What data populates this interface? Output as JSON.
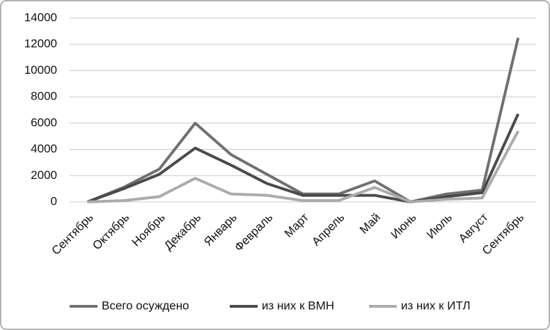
{
  "chart_data": {
    "type": "line",
    "categories": [
      "Сентябрь",
      "Октябрь",
      "Ноябрь",
      "Декабрь",
      "Январь",
      "Февраль",
      "Март",
      "Апрель",
      "Май",
      "Июнь",
      "Июль",
      "Август",
      "Сентябрь"
    ],
    "series": [
      {
        "name": "Всего осуждено",
        "color": "#707070",
        "values": [
          0,
          1100,
          2500,
          6000,
          3600,
          2100,
          600,
          600,
          1600,
          0,
          600,
          900,
          12500
        ]
      },
      {
        "name": "из них к ВМН",
        "color": "#4a4a4a",
        "values": [
          0,
          1000,
          2100,
          4100,
          2800,
          1400,
          500,
          500,
          500,
          0,
          400,
          700,
          6700
        ]
      },
      {
        "name": "из них к ИТЛ",
        "color": "#ababab",
        "values": [
          0,
          100,
          400,
          1800,
          600,
          500,
          100,
          100,
          1100,
          0,
          200,
          300,
          5400
        ]
      }
    ],
    "ylim": [
      0,
      14000
    ],
    "yticks": [
      0,
      2000,
      4000,
      6000,
      8000,
      10000,
      12000,
      14000
    ],
    "grid": true,
    "legend": "bottom"
  }
}
